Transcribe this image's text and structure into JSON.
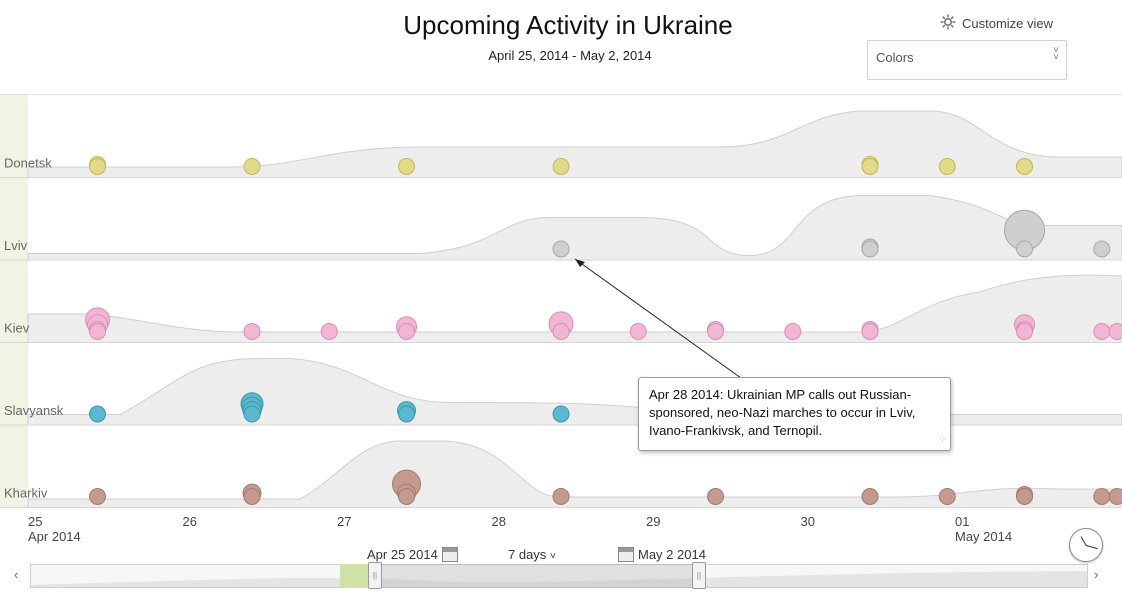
{
  "header": {
    "title": "Upcoming Activity in Ukraine",
    "subtitle": "April 25, 2014 - May 2, 2014",
    "customize_label": "Customize view",
    "colors_placeholder": "Colors"
  },
  "chart_data": {
    "type": "scatter",
    "rows": [
      {
        "name": "Donetsk",
        "color": "#e2d98a",
        "stroke": "#c2b85a",
        "points": [
          {
            "x": 0.45,
            "sizes": [
              8,
              8
            ]
          },
          {
            "x": 1.45,
            "sizes": [
              8
            ]
          },
          {
            "x": 2.45,
            "sizes": [
              8
            ]
          },
          {
            "x": 3.45,
            "sizes": [
              8
            ]
          },
          {
            "x": 5.45,
            "sizes": [
              8,
              8
            ]
          },
          {
            "x": 5.95,
            "sizes": [
              8
            ]
          },
          {
            "x": 6.45,
            "sizes": [
              8
            ]
          }
        ]
      },
      {
        "name": "Lviv",
        "color": "#cfcfcf",
        "stroke": "#a8a8a8",
        "points": [
          {
            "x": 3.45,
            "sizes": [
              8
            ]
          },
          {
            "x": 5.45,
            "sizes": [
              8,
              8
            ]
          },
          {
            "x": 6.45,
            "sizes": [
              8,
              20
            ]
          },
          {
            "x": 6.95,
            "sizes": [
              8
            ]
          }
        ]
      },
      {
        "name": "Kiev",
        "color": "#f2b5d3",
        "stroke": "#d98fb4",
        "points": [
          {
            "x": 0.45,
            "sizes": [
              8,
              8,
              10,
              12
            ]
          },
          {
            "x": 1.45,
            "sizes": [
              8
            ]
          },
          {
            "x": 1.95,
            "sizes": [
              8
            ]
          },
          {
            "x": 2.45,
            "sizes": [
              8,
              10
            ]
          },
          {
            "x": 3.45,
            "sizes": [
              8,
              12
            ]
          },
          {
            "x": 3.95,
            "sizes": [
              8
            ]
          },
          {
            "x": 4.45,
            "sizes": [
              8,
              8
            ]
          },
          {
            "x": 4.95,
            "sizes": [
              8
            ]
          },
          {
            "x": 5.45,
            "sizes": [
              8,
              8
            ]
          },
          {
            "x": 6.45,
            "sizes": [
              8,
              8,
              10
            ]
          },
          {
            "x": 6.95,
            "sizes": [
              8
            ]
          },
          {
            "x": 7.05,
            "sizes": [
              8
            ]
          }
        ]
      },
      {
        "name": "Slavyansk",
        "color": "#5bb8cf",
        "stroke": "#3b98b0",
        "points": [
          {
            "x": 0.45,
            "sizes": [
              8
            ]
          },
          {
            "x": 1.45,
            "sizes": [
              8,
              9,
              10,
              11
            ]
          },
          {
            "x": 2.45,
            "sizes": [
              8,
              9
            ]
          },
          {
            "x": 3.45,
            "sizes": [
              8
            ]
          }
        ]
      },
      {
        "name": "Kharkiv",
        "color": "#c49a8e",
        "stroke": "#a47a6e",
        "points": [
          {
            "x": 0.45,
            "sizes": [
              8
            ]
          },
          {
            "x": 1.45,
            "sizes": [
              8,
              9
            ]
          },
          {
            "x": 2.45,
            "sizes": [
              8,
              9,
              14
            ]
          },
          {
            "x": 3.45,
            "sizes": [
              8
            ]
          },
          {
            "x": 4.45,
            "sizes": [
              8
            ]
          },
          {
            "x": 5.45,
            "sizes": [
              8
            ]
          },
          {
            "x": 5.95,
            "sizes": [
              8
            ]
          },
          {
            "x": 6.45,
            "sizes": [
              8,
              8
            ]
          },
          {
            "x": 6.95,
            "sizes": [
              8
            ]
          },
          {
            "x": 7.05,
            "sizes": [
              8
            ]
          }
        ]
      }
    ],
    "x_ticks": [
      {
        "day": "25",
        "sub": "Apr 2014"
      },
      {
        "day": "26",
        "sub": ""
      },
      {
        "day": "27",
        "sub": ""
      },
      {
        "day": "28",
        "sub": ""
      },
      {
        "day": "29",
        "sub": ""
      },
      {
        "day": "30",
        "sub": ""
      },
      {
        "day": "01",
        "sub": "May 2014"
      }
    ],
    "xlim": [
      0,
      7.1
    ]
  },
  "tooltip": {
    "text": "Apr 28 2014: Ukrainian MP calls out Russian-sponsored, neo-Nazi marches to occur in Lviv, Ivano-Frankivsk, and Ternopil.",
    "line1": "Apr 28 2014: Ukrainian MP calls out Russian-",
    "line2": "sponsored, neo-Nazi marches to occur in Lviv,",
    "line3": "Ivano-Frankivsk, and Ternopil."
  },
  "range": {
    "start_label": "Apr 25 2014",
    "end_label": "May 2 2014",
    "span_label": "7 days"
  }
}
